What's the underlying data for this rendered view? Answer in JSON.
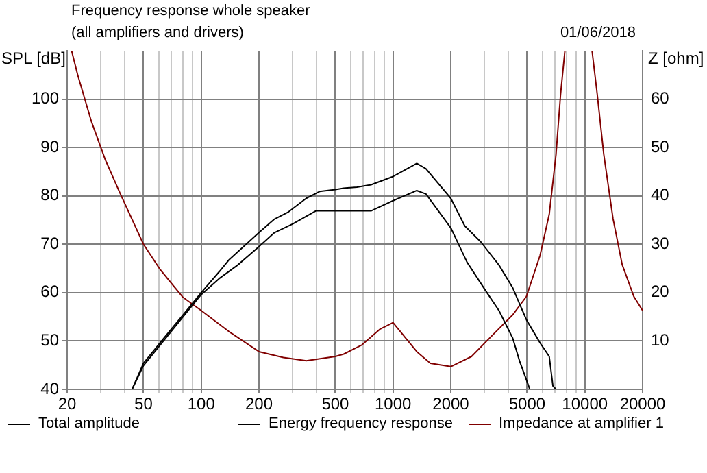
{
  "chart_data": {
    "type": "line",
    "title": "Frequency response whole speaker",
    "subtitle": "(all amplifiers and drivers)",
    "annotations": [
      "01/06/2018"
    ],
    "xlabel": null,
    "ylabel": "SPL [dB]",
    "y2label": "Z [ohm]",
    "log": "x",
    "grid": true,
    "legend": "bottom",
    "marker": "none",
    "line_style": "solid",
    "xlim": [
      20,
      20000
    ],
    "xticks": [
      20,
      {
        "value": 30,
        "label": null
      },
      {
        "value": 40,
        "label": null
      },
      50,
      {
        "value": 60,
        "label": null
      },
      {
        "value": 70,
        "label": null
      },
      {
        "value": 80,
        "label": null
      },
      {
        "value": 90,
        "label": null
      },
      100,
      200,
      {
        "value": 300,
        "label": null
      },
      {
        "value": 400,
        "label": null
      },
      500,
      {
        "value": 600,
        "label": null
      },
      {
        "value": 700,
        "label": null
      },
      {
        "value": 800,
        "label": null
      },
      {
        "value": 900,
        "label": null
      },
      1000,
      2000,
      {
        "value": 3000,
        "label": null
      },
      {
        "value": 4000,
        "label": null
      },
      5000,
      {
        "value": 6000,
        "label": null
      },
      {
        "value": 7000,
        "label": null
      },
      {
        "value": 8000,
        "label": null
      },
      {
        "value": 9000,
        "label": null
      },
      10000,
      20000
    ],
    "ylim": [
      40,
      110
    ],
    "yticks": [
      40,
      50,
      60,
      70,
      80,
      90,
      100
    ],
    "y2lim": [
      0,
      70
    ],
    "y2ticks": [
      10,
      20,
      30,
      40,
      50,
      60
    ],
    "series": [
      {
        "name": "Total amplitude",
        "color": "#000000",
        "x": [
          43.6,
          50,
          61,
          80,
          100,
          124,
          139,
          200,
          241,
          283,
          353,
          414,
          500,
          553,
          648,
          768,
          1000,
          1330,
          1484,
          2000,
          2365,
          2866,
          3565,
          4206,
          4957,
          5842,
          6521,
          6816,
          7076
        ],
        "values": [
          40,
          45.4,
          49.6,
          55.3,
          60,
          64.3,
          66.7,
          72.4,
          75.2,
          76.6,
          79.5,
          80.9,
          81.3,
          81.6,
          81.8,
          82.3,
          84,
          86.7,
          85.6,
          79.5,
          73.8,
          70.5,
          65.7,
          61,
          54.4,
          49.6,
          46.8,
          40.7,
          40
        ]
      },
      {
        "name": "Energy frequency response",
        "color": "#000000",
        "x": [
          43.6,
          50,
          80,
          100,
          124,
          155,
          200,
          241,
          300,
          396,
          553,
          768,
          1000,
          1330,
          1484,
          2000,
          2430,
          3028,
          3565,
          4206,
          4563,
          5092,
          5160
        ],
        "values": [
          40,
          44.9,
          54.9,
          59.6,
          62.9,
          65.7,
          69.5,
          72.4,
          74.2,
          76.9,
          76.9,
          76.9,
          79,
          81.1,
          80.4,
          73.4,
          66.3,
          60.5,
          56.3,
          50.6,
          45.9,
          40.7,
          40
        ]
      },
      {
        "name": "Impedance at amplifier 1",
        "color": "#800000",
        "axis": "y2",
        "x": [
          20,
          21.1,
          22.7,
          26.7,
          31.6,
          37.4,
          50,
          61,
          80,
          100,
          139,
          200,
          268,
          353,
          500,
          553,
          689,
          858,
          1000,
          1330,
          1566,
          2000,
          2566,
          3374,
          4206,
          4957,
          5842,
          6521,
          7076,
          7469,
          7872,
          10900,
          11610,
          12550,
          14020,
          15650,
          18000,
          20000
        ],
        "values": [
          70,
          70,
          65,
          55.5,
          47.5,
          40.9,
          30,
          24.8,
          19.1,
          16.3,
          12,
          7.8,
          6.6,
          5.9,
          6.8,
          7.3,
          9.2,
          12.5,
          13.8,
          7.8,
          5.4,
          4.7,
          6.8,
          11.6,
          15.4,
          19.2,
          27.7,
          36.2,
          48.6,
          60.9,
          70,
          70,
          60.9,
          48.6,
          35.3,
          25.8,
          19.2,
          16.3
        ]
      }
    ]
  }
}
